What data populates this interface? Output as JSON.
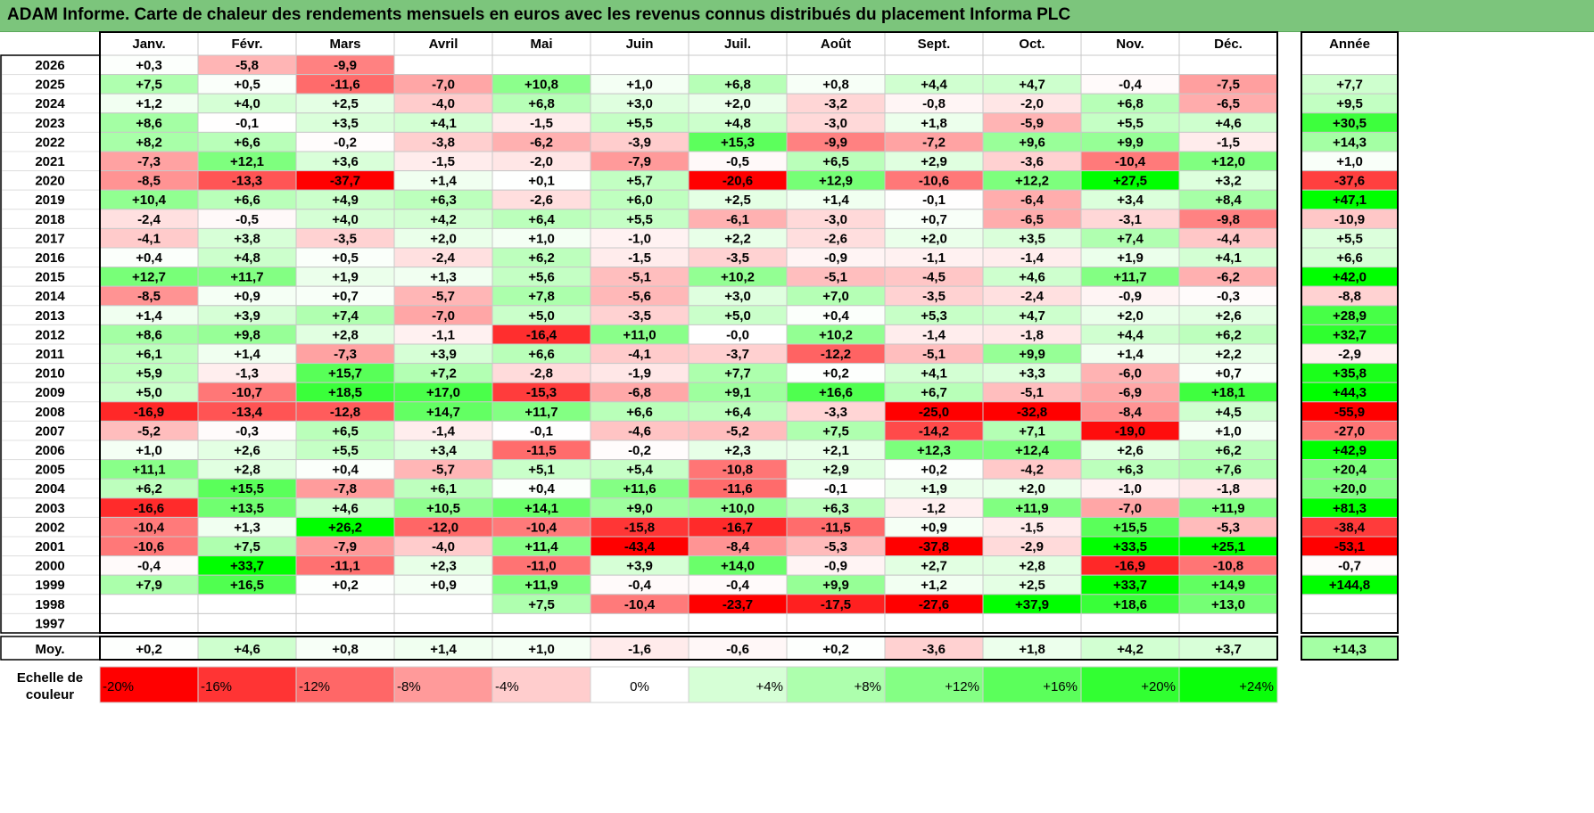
{
  "title": "ADAM Informe. Carte de chaleur des rendements mensuels en euros avec les revenus connus distribués du placement Informa PLC",
  "chart_data": {
    "type": "heatmap",
    "title": "ADAM Informe. Carte de chaleur des rendements mensuels en euros avec les revenus connus distribués du placement Informa PLC",
    "months": [
      "Janv.",
      "Févr.",
      "Mars",
      "Avril",
      "Mai",
      "Juin",
      "Juil.",
      "Août",
      "Sept.",
      "Oct.",
      "Nov.",
      "Déc."
    ],
    "year_label": "Année",
    "avg_label": "Moy.",
    "scale_label": [
      "Echelle de",
      "couleur"
    ],
    "rows": [
      {
        "year": "2026",
        "values": [
          "+0,3",
          "-5,8",
          "-9,9",
          "",
          "",
          "",
          "",
          "",
          "",
          "",
          "",
          ""
        ],
        "annual": ""
      },
      {
        "year": "2025",
        "values": [
          "+7,5",
          "+0,5",
          "-11,6",
          "-7,0",
          "+10,8",
          "+1,0",
          "+6,8",
          "+0,8",
          "+4,4",
          "+4,7",
          "-0,4",
          "-7,5"
        ],
        "annual": "+7,7"
      },
      {
        "year": "2024",
        "values": [
          "+1,2",
          "+4,0",
          "+2,5",
          "-4,0",
          "+6,8",
          "+3,0",
          "+2,0",
          "-3,2",
          "-0,8",
          "-2,0",
          "+6,8",
          "-6,5"
        ],
        "annual": "+9,5"
      },
      {
        "year": "2023",
        "values": [
          "+8,6",
          "-0,1",
          "+3,5",
          "+4,1",
          "-1,5",
          "+5,5",
          "+4,8",
          "-3,0",
          "+1,8",
          "-5,9",
          "+5,5",
          "+4,6"
        ],
        "annual": "+30,5"
      },
      {
        "year": "2022",
        "values": [
          "+8,2",
          "+6,6",
          "-0,2",
          "-3,8",
          "-6,2",
          "-3,9",
          "+15,3",
          "-9,9",
          "-7,2",
          "+9,6",
          "+9,9",
          "-1,5"
        ],
        "annual": "+14,3"
      },
      {
        "year": "2021",
        "values": [
          "-7,3",
          "+12,1",
          "+3,6",
          "-1,5",
          "-2,0",
          "-7,9",
          "-0,5",
          "+6,5",
          "+2,9",
          "-3,6",
          "-10,4",
          "+12,0"
        ],
        "annual": "+1,0"
      },
      {
        "year": "2020",
        "values": [
          "-8,5",
          "-13,3",
          "-37,7",
          "+1,4",
          "+0,1",
          "+5,7",
          "-20,6",
          "+12,9",
          "-10,6",
          "+12,2",
          "+27,5",
          "+3,2"
        ],
        "annual": "-37,6"
      },
      {
        "year": "2019",
        "values": [
          "+10,4",
          "+6,6",
          "+4,9",
          "+6,3",
          "-2,6",
          "+6,0",
          "+2,5",
          "+1,4",
          "-0,1",
          "-6,4",
          "+3,4",
          "+8,4"
        ],
        "annual": "+47,1"
      },
      {
        "year": "2018",
        "values": [
          "-2,4",
          "-0,5",
          "+4,0",
          "+4,2",
          "+6,4",
          "+5,5",
          "-6,1",
          "-3,0",
          "+0,7",
          "-6,5",
          "-3,1",
          "-9,8"
        ],
        "annual": "-10,9"
      },
      {
        "year": "2017",
        "values": [
          "-4,1",
          "+3,8",
          "-3,5",
          "+2,0",
          "+1,0",
          "-1,0",
          "+2,2",
          "-2,6",
          "+2,0",
          "+3,5",
          "+7,4",
          "-4,4"
        ],
        "annual": "+5,5"
      },
      {
        "year": "2016",
        "values": [
          "+0,4",
          "+4,8",
          "+0,5",
          "-2,4",
          "+6,2",
          "-1,5",
          "-3,5",
          "-0,9",
          "-1,1",
          "-1,4",
          "+1,9",
          "+4,1"
        ],
        "annual": "+6,6"
      },
      {
        "year": "2015",
        "values": [
          "+12,7",
          "+11,7",
          "+1,9",
          "+1,3",
          "+5,6",
          "-5,1",
          "+10,2",
          "-5,1",
          "-4,5",
          "+4,6",
          "+11,7",
          "-6,2"
        ],
        "annual": "+42,0"
      },
      {
        "year": "2014",
        "values": [
          "-8,5",
          "+0,9",
          "+0,7",
          "-5,7",
          "+7,8",
          "-5,6",
          "+3,0",
          "+7,0",
          "-3,5",
          "-2,4",
          "-0,9",
          "-0,3"
        ],
        "annual": "-8,8"
      },
      {
        "year": "2013",
        "values": [
          "+1,4",
          "+3,9",
          "+7,4",
          "-7,0",
          "+5,0",
          "-3,5",
          "+5,0",
          "+0,4",
          "+5,3",
          "+4,7",
          "+2,0",
          "+2,6"
        ],
        "annual": "+28,9"
      },
      {
        "year": "2012",
        "values": [
          "+8,6",
          "+9,8",
          "+2,8",
          "-1,1",
          "-16,4",
          "+11,0",
          "-0,0",
          "+10,2",
          "-1,4",
          "-1,8",
          "+4,4",
          "+6,2"
        ],
        "annual": "+32,7"
      },
      {
        "year": "2011",
        "values": [
          "+6,1",
          "+1,4",
          "-7,3",
          "+3,9",
          "+6,6",
          "-4,1",
          "-3,7",
          "-12,2",
          "-5,1",
          "+9,9",
          "+1,4",
          "+2,2"
        ],
        "annual": "-2,9"
      },
      {
        "year": "2010",
        "values": [
          "+5,9",
          "-1,3",
          "+15,7",
          "+7,2",
          "-2,8",
          "-1,9",
          "+7,7",
          "+0,2",
          "+4,1",
          "+3,3",
          "-6,0",
          "+0,7"
        ],
        "annual": "+35,8"
      },
      {
        "year": "2009",
        "values": [
          "+5,0",
          "-10,7",
          "+18,5",
          "+17,0",
          "-15,3",
          "-6,8",
          "+9,1",
          "+16,6",
          "+6,7",
          "-5,1",
          "-6,9",
          "+18,1"
        ],
        "annual": "+44,3"
      },
      {
        "year": "2008",
        "values": [
          "-16,9",
          "-13,4",
          "-12,8",
          "+14,7",
          "+11,7",
          "+6,6",
          "+6,4",
          "-3,3",
          "-25,0",
          "-32,8",
          "-8,4",
          "+4,5"
        ],
        "annual": "-55,9"
      },
      {
        "year": "2007",
        "values": [
          "-5,2",
          "-0,3",
          "+6,5",
          "-1,4",
          "-0,1",
          "-4,6",
          "-5,2",
          "+7,5",
          "-14,2",
          "+7,1",
          "-19,0",
          "+1,0"
        ],
        "annual": "-27,0"
      },
      {
        "year": "2006",
        "values": [
          "+1,0",
          "+2,6",
          "+5,5",
          "+3,4",
          "-11,5",
          "-0,2",
          "+2,3",
          "+2,1",
          "+12,3",
          "+12,4",
          "+2,6",
          "+6,2"
        ],
        "annual": "+42,9"
      },
      {
        "year": "2005",
        "values": [
          "+11,1",
          "+2,8",
          "+0,4",
          "-5,7",
          "+5,1",
          "+5,4",
          "-10,8",
          "+2,9",
          "+0,2",
          "-4,2",
          "+6,3",
          "+7,6"
        ],
        "annual": "+20,4"
      },
      {
        "year": "2004",
        "values": [
          "+6,2",
          "+15,5",
          "-7,8",
          "+6,1",
          "+0,4",
          "+11,6",
          "-11,6",
          "-0,1",
          "+1,9",
          "+2,0",
          "-1,0",
          "-1,8"
        ],
        "annual": "+20,0"
      },
      {
        "year": "2003",
        "values": [
          "-16,6",
          "+13,5",
          "+4,6",
          "+10,5",
          "+14,1",
          "+9,0",
          "+10,0",
          "+6,3",
          "-1,2",
          "+11,9",
          "-7,0",
          "+11,9"
        ],
        "annual": "+81,3"
      },
      {
        "year": "2002",
        "values": [
          "-10,4",
          "+1,3",
          "+26,2",
          "-12,0",
          "-10,4",
          "-15,8",
          "-16,7",
          "-11,5",
          "+0,9",
          "-1,5",
          "+15,5",
          "-5,3"
        ],
        "annual": "-38,4"
      },
      {
        "year": "2001",
        "values": [
          "-10,6",
          "+7,5",
          "-7,9",
          "-4,0",
          "+11,4",
          "-43,4",
          "-8,4",
          "-5,3",
          "-37,8",
          "-2,9",
          "+33,5",
          "+25,1"
        ],
        "annual": "-53,1"
      },
      {
        "year": "2000",
        "values": [
          "-0,4",
          "+33,7",
          "-11,1",
          "+2,3",
          "-11,0",
          "+3,9",
          "+14,0",
          "-0,9",
          "+2,7",
          "+2,8",
          "-16,9",
          "-10,8"
        ],
        "annual": "-0,7"
      },
      {
        "year": "1999",
        "values": [
          "+7,9",
          "+16,5",
          "+0,2",
          "+0,9",
          "+11,9",
          "-0,4",
          "-0,4",
          "+9,9",
          "+1,2",
          "+2,5",
          "+33,7",
          "+14,9"
        ],
        "annual": "+144,8"
      },
      {
        "year": "1998",
        "values": [
          "",
          "",
          "",
          "",
          "+7,5",
          "-10,4",
          "-23,7",
          "-17,5",
          "-27,6",
          "+37,9",
          "+18,6",
          "+13,0"
        ],
        "annual": ""
      },
      {
        "year": "1997",
        "values": [
          "",
          "",
          "",
          "",
          "",
          "",
          "",
          "",
          "",
          "",
          "",
          ""
        ],
        "annual": ""
      }
    ],
    "averages": [
      "+0,2",
      "+4,6",
      "+0,8",
      "+1,4",
      "+1,0",
      "-1,6",
      "-0,6",
      "+0,2",
      "-3,6",
      "+1,8",
      "+4,2",
      "+3,7"
    ],
    "average_annual": "+14,3",
    "scale": [
      {
        "label": "-20%",
        "value": -20,
        "color": "#ff0000"
      },
      {
        "label": "-16%",
        "value": -16,
        "color": "#ff3434"
      },
      {
        "label": "-12%",
        "value": -12,
        "color": "#ff6767"
      },
      {
        "label": "-8%",
        "value": -8,
        "color": "#ff9a9a"
      },
      {
        "label": "-4%",
        "value": -4,
        "color": "#ffcdcd"
      },
      {
        "label": "0%",
        "value": 0,
        "color": "#ffffff"
      },
      {
        "label": "+4%",
        "value": 4,
        "color": "#d6ffd6"
      },
      {
        "label": "+8%",
        "value": 8,
        "color": "#adffad"
      },
      {
        "label": "+12%",
        "value": 12,
        "color": "#84ff84"
      },
      {
        "label": "+16%",
        "value": 16,
        "color": "#5bff5b"
      },
      {
        "label": "+20%",
        "value": 20,
        "color": "#32ff32"
      },
      {
        "label": "+24%",
        "value": 24,
        "color": "#09ff09"
      }
    ],
    "annual_scale": {
      "neg_full": -50,
      "pos_full": 40
    }
  }
}
